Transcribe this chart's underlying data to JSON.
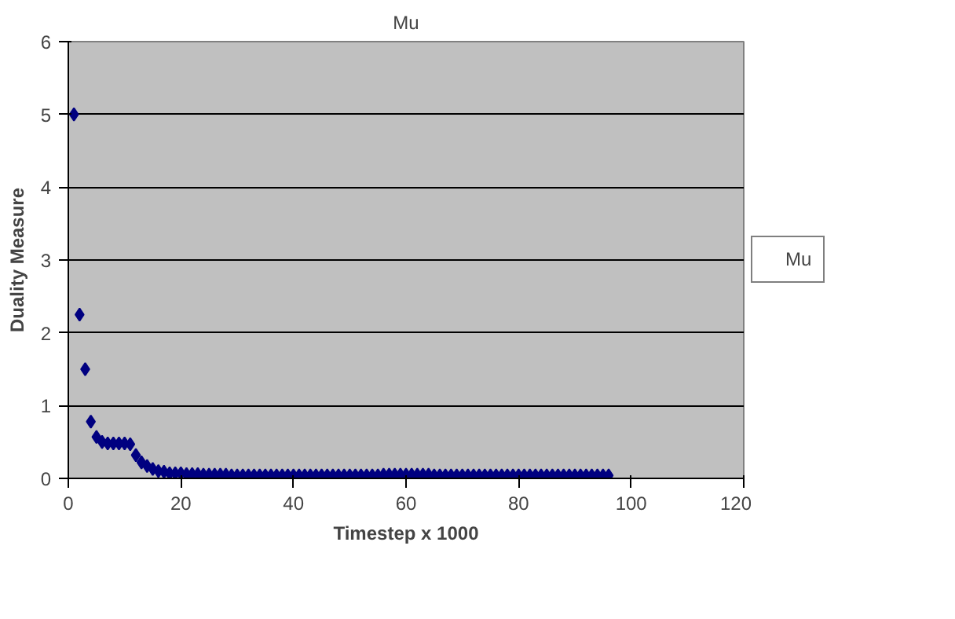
{
  "chart_data": {
    "type": "scatter",
    "title": "Mu",
    "xlabel": "Timestep x 1000",
    "ylabel": "Duality Measure",
    "x": [
      1,
      2,
      3,
      4,
      5,
      6,
      7,
      8,
      9,
      10,
      11,
      12,
      13,
      14,
      15,
      16,
      17,
      18,
      19,
      20,
      21,
      22,
      23,
      24,
      25,
      26,
      27,
      28,
      29,
      30,
      31,
      32,
      33,
      34,
      35,
      36,
      37,
      38,
      39,
      40,
      41,
      42,
      43,
      44,
      45,
      46,
      47,
      48,
      49,
      50,
      51,
      52,
      53,
      54,
      55,
      56,
      57,
      58,
      59,
      60,
      61,
      62,
      63,
      64,
      65,
      66,
      67,
      68,
      69,
      70,
      71,
      72,
      73,
      74,
      75,
      76,
      77,
      78,
      79,
      80,
      81,
      82,
      83,
      84,
      85,
      86,
      87,
      88,
      89,
      90,
      91,
      92,
      93,
      94,
      95,
      96
    ],
    "series": [
      {
        "name": "Mu",
        "color": "#000080",
        "values": [
          5,
          2.25,
          1.5,
          0.78,
          0.57,
          0.5,
          0.48,
          0.48,
          0.48,
          0.48,
          0.47,
          0.32,
          0.22,
          0.17,
          0.13,
          0.1,
          0.09,
          0.07,
          0.07,
          0.07,
          0.06,
          0.06,
          0.06,
          0.05,
          0.05,
          0.05,
          0.05,
          0.05,
          0.04,
          0.04,
          0.04,
          0.04,
          0.04,
          0.04,
          0.04,
          0.04,
          0.04,
          0.04,
          0.04,
          0.04,
          0.04,
          0.04,
          0.04,
          0.04,
          0.04,
          0.04,
          0.04,
          0.04,
          0.04,
          0.04,
          0.04,
          0.04,
          0.04,
          0.04,
          0.04,
          0.05,
          0.05,
          0.05,
          0.05,
          0.05,
          0.05,
          0.05,
          0.05,
          0.05,
          0.04,
          0.04,
          0.04,
          0.04,
          0.04,
          0.04,
          0.04,
          0.04,
          0.04,
          0.04,
          0.04,
          0.04,
          0.04,
          0.04,
          0.04,
          0.04,
          0.04,
          0.04,
          0.04,
          0.04,
          0.04,
          0.04,
          0.04,
          0.04,
          0.04,
          0.04,
          0.04,
          0.04,
          0.04,
          0.04,
          0.04,
          0.04
        ]
      }
    ],
    "xlim": [
      0,
      120
    ],
    "ylim": [
      0,
      6
    ],
    "xticks": [
      0,
      20,
      40,
      60,
      80,
      100,
      120
    ],
    "yticks": [
      0,
      1,
      2,
      3,
      4,
      5,
      6
    ],
    "grid": "y",
    "legend": "right",
    "marker": "diamond"
  }
}
